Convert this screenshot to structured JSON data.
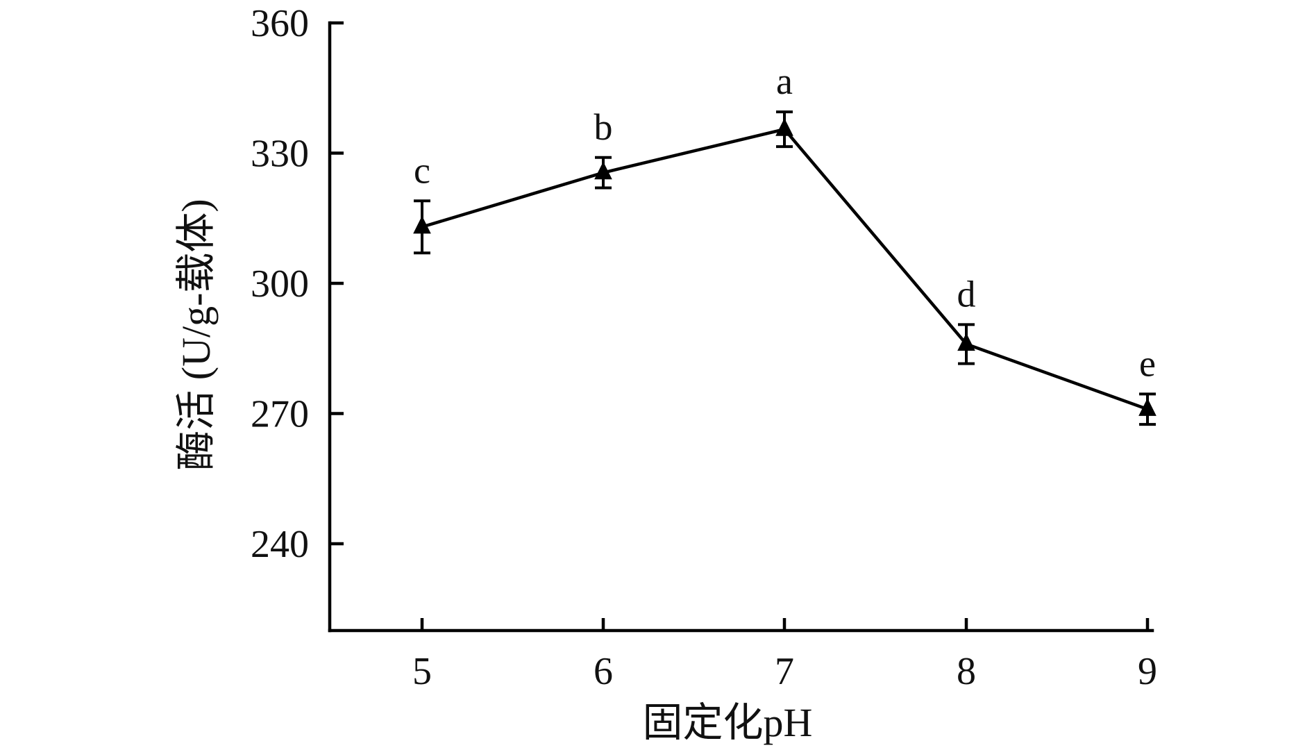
{
  "chart_data": {
    "type": "line",
    "xlabel": "固定化pH",
    "ylabel": "酶活 (U/g-载体)",
    "x": [
      5,
      6,
      7,
      8,
      9
    ],
    "x_ticks": [
      "5",
      "6",
      "7",
      "8",
      "9"
    ],
    "ylim": [
      220,
      360
    ],
    "y_ticks": [
      "240",
      "270",
      "300",
      "330",
      "360"
    ],
    "series": [
      {
        "values": [
          313,
          325.5,
          335.5,
          286,
          271
        ],
        "errors": [
          6,
          3.5,
          4,
          4.5,
          3.5
        ],
        "marker": "triangle",
        "color": "#000000"
      }
    ],
    "significance_labels": [
      "c",
      "b",
      "a",
      "d",
      "e"
    ],
    "grid": false,
    "legend": "none"
  }
}
